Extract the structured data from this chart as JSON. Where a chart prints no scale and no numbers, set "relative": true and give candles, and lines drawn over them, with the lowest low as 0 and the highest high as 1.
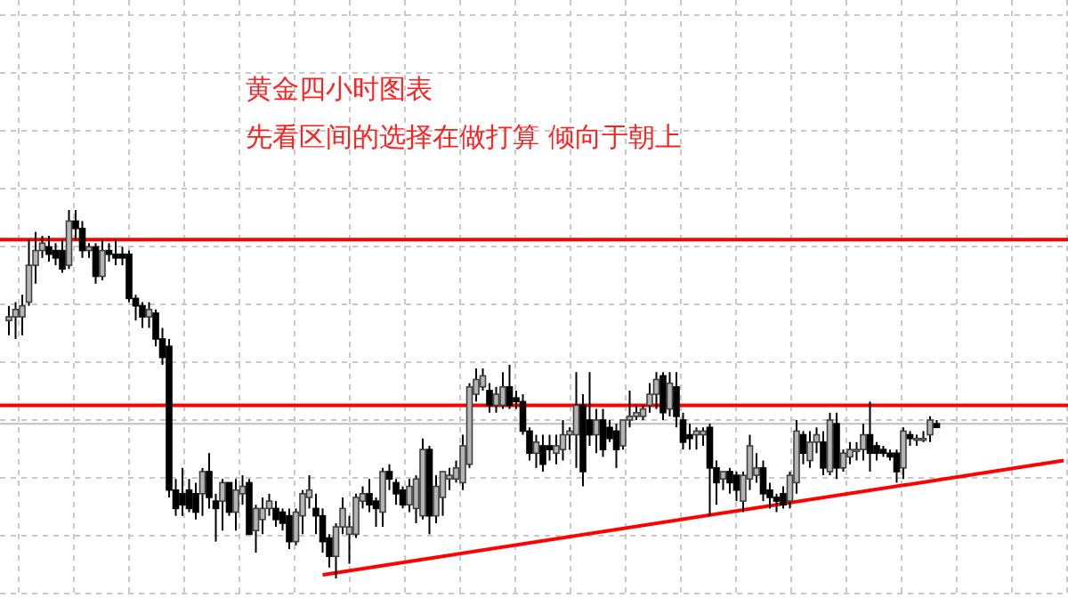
{
  "chart_data": {
    "type": "candlestick",
    "title": "黄金四小时图表",
    "subtitle": "先看区间的选择在做打算 倾向于朝上",
    "relative": true,
    "grid": true,
    "categories": [
      null,
      null,
      null,
      null,
      null,
      null,
      null,
      null,
      null,
      null,
      null,
      null,
      null,
      null,
      null,
      null,
      null,
      null,
      null,
      null,
      null,
      null,
      null,
      null,
      null,
      null,
      null,
      null,
      null,
      null,
      null,
      null,
      null,
      null,
      null,
      null,
      null,
      null,
      null,
      null,
      null,
      null,
      null,
      null,
      null,
      null,
      null,
      null,
      null,
      null,
      null,
      null,
      null,
      null,
      null,
      null,
      null,
      null,
      null,
      null,
      null,
      null,
      null,
      null,
      null,
      null,
      null,
      null,
      null,
      null,
      null,
      null,
      null,
      null,
      null,
      null,
      null,
      null,
      null,
      null,
      null,
      null,
      null,
      null,
      null,
      null,
      null,
      null,
      null,
      null,
      null,
      null,
      null,
      null,
      null,
      null,
      null,
      null,
      null,
      null,
      null,
      null,
      null,
      null,
      null,
      null,
      null,
      null,
      null,
      null,
      null,
      null,
      null,
      null,
      null,
      null,
      null,
      null,
      null,
      null,
      null,
      null,
      null,
      null,
      null,
      null,
      null,
      null,
      null,
      null,
      null,
      null,
      null,
      null,
      null,
      null,
      null,
      null,
      null,
      null,
      null,
      null,
      null,
      null,
      null,
      null,
      null,
      null,
      null,
      null,
      null,
      null,
      null,
      null,
      null,
      null,
      null,
      null,
      null,
      null
    ],
    "ohlc": [
      [
        0.7,
        0.74,
        0.66,
        0.71
      ],
      [
        0.71,
        0.75,
        0.65,
        0.73
      ],
      [
        0.71,
        0.77,
        0.66,
        0.74
      ],
      [
        0.75,
        0.92,
        0.74,
        0.85
      ],
      [
        0.85,
        0.94,
        0.8,
        0.89
      ],
      [
        0.89,
        0.93,
        0.87,
        0.91
      ],
      [
        0.9,
        0.93,
        0.86,
        0.88
      ],
      [
        0.89,
        0.91,
        0.85,
        0.87
      ],
      [
        0.89,
        0.92,
        0.83,
        0.84
      ],
      [
        0.85,
        1.0,
        0.84,
        0.97
      ],
      [
        0.97,
        1.0,
        0.92,
        0.95
      ],
      [
        0.95,
        0.97,
        0.87,
        0.89
      ],
      [
        0.89,
        0.91,
        0.87,
        0.9
      ],
      [
        0.9,
        0.91,
        0.8,
        0.82
      ],
      [
        0.82,
        0.92,
        0.81,
        0.89
      ],
      [
        0.89,
        0.91,
        0.86,
        0.88
      ],
      [
        0.88,
        0.92,
        0.85,
        0.87
      ],
      [
        0.88,
        0.9,
        0.85,
        0.87
      ],
      [
        0.88,
        0.89,
        0.75,
        0.76
      ],
      [
        0.76,
        0.77,
        0.7,
        0.74
      ],
      [
        0.74,
        0.75,
        0.68,
        0.71
      ],
      [
        0.71,
        0.75,
        0.68,
        0.73
      ],
      [
        0.72,
        0.73,
        0.63,
        0.65
      ],
      [
        0.65,
        0.68,
        0.58,
        0.6
      ],
      [
        0.63,
        0.65,
        0.22,
        0.24
      ],
      [
        0.24,
        0.27,
        0.17,
        0.19
      ],
      [
        0.23,
        0.3,
        0.17,
        0.2
      ],
      [
        0.24,
        0.27,
        0.18,
        0.19
      ],
      [
        0.23,
        0.26,
        0.16,
        0.18
      ],
      [
        0.23,
        0.3,
        0.17,
        0.29
      ],
      [
        0.29,
        0.34,
        0.19,
        0.22
      ],
      [
        0.21,
        0.23,
        0.1,
        0.19
      ],
      [
        0.21,
        0.27,
        0.13,
        0.26
      ],
      [
        0.26,
        0.26,
        0.17,
        0.18
      ],
      [
        0.18,
        0.27,
        0.13,
        0.24
      ],
      [
        0.23,
        0.28,
        0.2,
        0.25
      ],
      [
        0.26,
        0.27,
        0.12,
        0.12
      ],
      [
        0.13,
        0.2,
        0.07,
        0.19
      ],
      [
        0.16,
        0.22,
        0.12,
        0.19
      ],
      [
        0.19,
        0.23,
        0.17,
        0.21
      ],
      [
        0.19,
        0.21,
        0.14,
        0.16
      ],
      [
        0.18,
        0.19,
        0.13,
        0.15
      ],
      [
        0.17,
        0.19,
        0.08,
        0.1
      ],
      [
        0.1,
        0.19,
        0.09,
        0.18
      ],
      [
        0.17,
        0.24,
        0.12,
        0.23
      ],
      [
        0.22,
        0.28,
        0.19,
        0.24
      ],
      [
        0.19,
        0.23,
        0.12,
        0.17
      ],
      [
        0.17,
        0.19,
        0.07,
        0.1
      ],
      [
        0.11,
        0.12,
        0.03,
        0.06
      ],
      [
        0.06,
        0.15,
        0,
        0.14
      ],
      [
        0.14,
        0.22,
        0.12,
        0.19
      ],
      [
        0.12,
        0.17,
        0.04,
        0.14
      ],
      [
        0.12,
        0.23,
        0.11,
        0.22
      ],
      [
        0.21,
        0.25,
        0.19,
        0.23
      ],
      [
        0.23,
        0.27,
        0.18,
        0.2
      ],
      [
        0.21,
        0.22,
        0.14,
        0.19
      ],
      [
        0.18,
        0.3,
        0.14,
        0.29
      ],
      [
        0.29,
        0.31,
        0.24,
        0.27
      ],
      [
        0.26,
        0.27,
        0.2,
        0.23
      ],
      [
        0.24,
        0.25,
        0.19,
        0.2
      ],
      [
        0.2,
        0.27,
        0.18,
        0.25
      ],
      [
        0.19,
        0.28,
        0.15,
        0.27
      ],
      [
        0.17,
        0.38,
        0.16,
        0.35
      ],
      [
        0.35,
        0.36,
        0.12,
        0.17
      ],
      [
        0.17,
        0.28,
        0.15,
        0.25
      ],
      [
        0.22,
        0.29,
        0.17,
        0.29
      ],
      [
        0.27,
        0.3,
        0.24,
        0.28
      ],
      [
        0.27,
        0.32,
        0.26,
        0.3
      ],
      [
        0.26,
        0.39,
        0.24,
        0.36
      ],
      [
        0.31,
        0.53,
        0.3,
        0.52
      ],
      [
        0.5,
        0.57,
        0.48,
        0.54
      ],
      [
        0.52,
        0.57,
        0.51,
        0.55
      ],
      [
        0.51,
        0.53,
        0.45,
        0.47
      ],
      [
        0.47,
        0.52,
        0.45,
        0.5
      ],
      [
        0.47,
        0.56,
        0.46,
        0.52
      ],
      [
        0.52,
        0.58,
        0.46,
        0.47
      ],
      [
        0.49,
        0.51,
        0.46,
        0.48
      ],
      [
        0.48,
        0.5,
        0.39,
        0.4
      ],
      [
        0.4,
        0.41,
        0.32,
        0.34
      ],
      [
        0.34,
        0.39,
        0.3,
        0.37
      ],
      [
        0.36,
        0.39,
        0.29,
        0.31
      ],
      [
        0.36,
        0.39,
        0.32,
        0.35
      ],
      [
        0.34,
        0.39,
        0.31,
        0.36
      ],
      [
        0.35,
        0.43,
        0.32,
        0.39
      ],
      [
        0.39,
        0.41,
        0.35,
        0.4
      ],
      [
        0.39,
        0.56,
        0.3,
        0.47
      ],
      [
        0.47,
        0.5,
        0.25,
        0.29
      ],
      [
        0.43,
        0.56,
        0.36,
        0.39
      ],
      [
        0.39,
        0.46,
        0.34,
        0.43
      ],
      [
        0.43,
        0.46,
        0.33,
        0.35
      ],
      [
        0.41,
        0.43,
        0.37,
        0.38
      ],
      [
        0.4,
        0.42,
        0.3,
        0.35
      ],
      [
        0.36,
        0.43,
        0.35,
        0.43
      ],
      [
        0.43,
        0.51,
        0.41,
        0.44
      ],
      [
        0.44,
        0.47,
        0.43,
        0.45
      ],
      [
        0.44,
        0.47,
        0.43,
        0.46
      ],
      [
        0.47,
        0.53,
        0.45,
        0.5
      ],
      [
        0.5,
        0.56,
        0.46,
        0.54
      ],
      [
        0.55,
        0.56,
        0.43,
        0.45
      ],
      [
        0.46,
        0.56,
        0.44,
        0.53
      ],
      [
        0.52,
        0.56,
        0.41,
        0.44
      ],
      [
        0.43,
        0.45,
        0.35,
        0.37
      ],
      [
        0.39,
        0.42,
        0.35,
        0.38
      ],
      [
        0.39,
        0.41,
        0.35,
        0.4
      ],
      [
        0.39,
        0.41,
        0.36,
        0.4
      ],
      [
        0.41,
        0.42,
        0.17,
        0.3
      ],
      [
        0.3,
        0.32,
        0.2,
        0.26
      ],
      [
        0.27,
        0.29,
        0.24,
        0.29
      ],
      [
        0.29,
        0.3,
        0.23,
        0.26
      ],
      [
        0.28,
        0.29,
        0.21,
        0.24
      ],
      [
        0.21,
        0.29,
        0.18,
        0.28
      ],
      [
        0.27,
        0.39,
        0.24,
        0.36
      ],
      [
        0.28,
        0.34,
        0.26,
        0.3
      ],
      [
        0.3,
        0.32,
        0.21,
        0.23
      ],
      [
        0.24,
        0.26,
        0.19,
        0.22
      ],
      [
        0.22,
        0.23,
        0.18,
        0.21
      ],
      [
        0.23,
        0.25,
        0.19,
        0.2
      ],
      [
        0.21,
        0.29,
        0.19,
        0.28
      ],
      [
        0.26,
        0.43,
        0.23,
        0.4
      ],
      [
        0.39,
        0.4,
        0.31,
        0.34
      ],
      [
        0.32,
        0.4,
        0.3,
        0.37
      ],
      [
        0.37,
        0.41,
        0.34,
        0.39
      ],
      [
        0.37,
        0.4,
        0.28,
        0.3
      ],
      [
        0.29,
        0.45,
        0.28,
        0.43
      ],
      [
        0.42,
        0.45,
        0.27,
        0.3
      ],
      [
        0.3,
        0.35,
        0.29,
        0.34
      ],
      [
        0.33,
        0.37,
        0.31,
        0.35
      ],
      [
        0.35,
        0.37,
        0.32,
        0.35
      ],
      [
        0.35,
        0.42,
        0.32,
        0.39
      ],
      [
        0.39,
        0.48,
        0.29,
        0.34
      ],
      [
        0.36,
        0.37,
        0.32,
        0.34
      ],
      [
        0.35,
        0.36,
        0.33,
        0.34
      ],
      [
        0.34,
        0.35,
        0.32,
        0.33
      ],
      [
        0.34,
        0.35,
        0.26,
        0.29
      ],
      [
        0.3,
        0.41,
        0.27,
        0.4
      ],
      [
        0.39,
        0.4,
        0.36,
        0.38
      ],
      [
        0.38,
        0.39,
        0.36,
        0.38
      ],
      [
        0.38,
        0.4,
        0.37,
        0.38
      ],
      [
        0.39,
        0.44,
        0.37,
        0.43
      ],
      [
        0.42,
        0.43,
        0.41,
        0.41
      ],
      null,
      null,
      null,
      null,
      null,
      null,
      null,
      null,
      null,
      null,
      null,
      null,
      null,
      null,
      null,
      null,
      null,
      null,
      null,
      null
    ],
    "series": [
      {
        "type": "line",
        "values": [
          null,
          null,
          null,
          null,
          null,
          null,
          null,
          null,
          null,
          null,
          null,
          null,
          null,
          null,
          null,
          null,
          null,
          null,
          null,
          null,
          null,
          null,
          null,
          null,
          null,
          null,
          null,
          null,
          null,
          null,
          null,
          null,
          null,
          null,
          null,
          null,
          null,
          null,
          null,
          null,
          null,
          null,
          null,
          null,
          null,
          null,
          null,
          0.01,
          null,
          null,
          null,
          null,
          null,
          null,
          null,
          null,
          null,
          null,
          null,
          null,
          null,
          null,
          null,
          null,
          null,
          null,
          null,
          null,
          null,
          null,
          null,
          null,
          null,
          null,
          null,
          null,
          null,
          null,
          null,
          null,
          null,
          null,
          null,
          null,
          null,
          null,
          null,
          null,
          null,
          null,
          null,
          null,
          null,
          null,
          null,
          null,
          null,
          null,
          null,
          null,
          null,
          null,
          null,
          null,
          null,
          null,
          null,
          null,
          null,
          null,
          null,
          null,
          null,
          null,
          null,
          null,
          null,
          null,
          null,
          null,
          null,
          null,
          null,
          null,
          null,
          null,
          null,
          null,
          null,
          null,
          null,
          null,
          null,
          null,
          null,
          null,
          null,
          null,
          null,
          null,
          null,
          null,
          null,
          null,
          null,
          null,
          null,
          null,
          null,
          null,
          null,
          null,
          null,
          null,
          null,
          null,
          null,
          null,
          0.32,
          null
        ],
        "color": "#ff0000"
      }
    ],
    "ref_lines": [
      {
        "axis": "y",
        "value": 0.92,
        "color": "#ff0000"
      },
      {
        "axis": "y",
        "value": 0.47,
        "color": "#ff0000"
      },
      {
        "axis": "y",
        "value": 0.42,
        "color": "#c0c0c0"
      }
    ]
  }
}
